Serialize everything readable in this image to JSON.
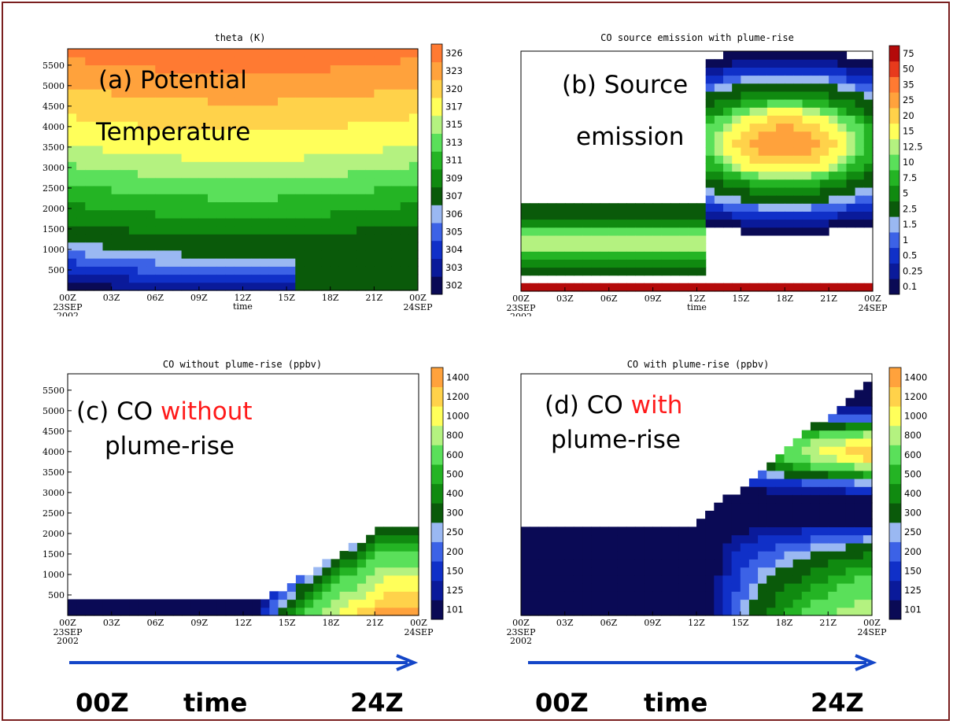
{
  "chart_data": [
    {
      "type": "heatmap",
      "panel": "a",
      "title": "theta (K)",
      "xlabel": "time",
      "x_ticks": [
        "00Z",
        "03Z",
        "06Z",
        "09Z",
        "12Z",
        "15Z",
        "18Z",
        "21Z",
        "00Z"
      ],
      "x_start_sub": [
        "23SEP",
        "2002"
      ],
      "x_end_sub": [
        "24SEP"
      ],
      "y_ticks": [
        500,
        1000,
        1500,
        2000,
        2500,
        3000,
        3500,
        4000,
        4500,
        5000,
        5500
      ],
      "ylim": [
        0,
        5900
      ],
      "colorbar_labels": [
        "302",
        "303",
        "304",
        "305",
        "306",
        "307",
        "309",
        "311",
        "313",
        "315",
        "317",
        "320",
        "323",
        "326"
      ],
      "colors": [
        "#0a0a55",
        "#0a1a9a",
        "#1030c8",
        "#3c62e6",
        "#9ab8f2",
        "#0a5a0a",
        "#108a10",
        "#24b424",
        "#5ae05a",
        "#b4f280",
        "#ffff5a",
        "#ffd24a",
        "#ffa23c",
        "#ff7a32"
      ],
      "annotation": [
        "(a) Potential",
        "Temperature"
      ]
    },
    {
      "type": "heatmap",
      "panel": "b",
      "title": "CO source emission with plume-rise",
      "xlabel": "time",
      "x_ticks": [
        "00Z",
        "03Z",
        "06Z",
        "09Z",
        "12Z",
        "15Z",
        "18Z",
        "21Z",
        "00Z"
      ],
      "x_start_sub": [
        "23SEP",
        "2002"
      ],
      "x_end_sub": [
        "24SEP"
      ],
      "ylim": [
        0,
        5900
      ],
      "colorbar_labels": [
        "0.1",
        "0.25",
        "0.5",
        "1",
        "1.5",
        "2.5",
        "5",
        "7.5",
        "10",
        "12.5",
        "15",
        "20",
        "25",
        "35",
        "50",
        "75"
      ],
      "colors": [
        "#0a0a55",
        "#0a1a9a",
        "#1030c8",
        "#3c62e6",
        "#9ab8f2",
        "#0a5a0a",
        "#108a10",
        "#24b424",
        "#5ae05a",
        "#b4f280",
        "#ffff5a",
        "#ffd24a",
        "#ffa23c",
        "#ff7a32",
        "#e83a1c",
        "#b40a0a"
      ],
      "annotation": [
        "(b) Source",
        "emission"
      ]
    },
    {
      "type": "heatmap",
      "panel": "c",
      "title": "CO without plume-rise (ppbv)",
      "x_ticks": [
        "00Z",
        "03Z",
        "06Z",
        "09Z",
        "12Z",
        "15Z",
        "18Z",
        "21Z",
        "00Z"
      ],
      "x_start_sub": [
        "23SEP",
        "2002"
      ],
      "x_end_sub": [
        "24SEP"
      ],
      "y_ticks": [
        500,
        1000,
        1500,
        2000,
        2500,
        3000,
        3500,
        4000,
        4500,
        5000,
        5500
      ],
      "ylim": [
        0,
        5900
      ],
      "colorbar_labels": [
        "101",
        "125",
        "150",
        "200",
        "250",
        "300",
        "400",
        "500",
        "600",
        "800",
        "1000",
        "1200",
        "1400"
      ],
      "colors": [
        "#0a0a55",
        "#0a1a9a",
        "#1030c8",
        "#3c62e6",
        "#9ab8f2",
        "#0a5a0a",
        "#108a10",
        "#24b424",
        "#5ae05a",
        "#b4f280",
        "#ffff5a",
        "#ffd24a",
        "#ffa23c",
        "#ff7a32"
      ],
      "annotation": [
        "(c) CO ",
        "without",
        "plume-rise"
      ]
    },
    {
      "type": "heatmap",
      "panel": "d",
      "title": "CO with plume-rise (ppbv)",
      "x_ticks": [
        "00Z",
        "03Z",
        "06Z",
        "09Z",
        "12Z",
        "15Z",
        "18Z",
        "21Z",
        "00Z"
      ],
      "x_start_sub": [
        "23SEP",
        "2002"
      ],
      "x_end_sub": [
        "24SEP"
      ],
      "ylim": [
        0,
        5900
      ],
      "colorbar_labels": [
        "101",
        "125",
        "150",
        "200",
        "250",
        "300",
        "400",
        "500",
        "600",
        "800",
        "1000",
        "1200",
        "1400"
      ],
      "colors": [
        "#0a0a55",
        "#0a1a9a",
        "#1030c8",
        "#3c62e6",
        "#9ab8f2",
        "#0a5a0a",
        "#108a10",
        "#24b424",
        "#5ae05a",
        "#b4f280",
        "#ffff5a",
        "#ffd24a",
        "#ffa23c",
        "#ff7a32"
      ],
      "annotation": [
        "(d) CO ",
        "with",
        "plume-rise"
      ]
    }
  ],
  "bottom_labels": {
    "left": [
      "00Z",
      "time",
      "24Z"
    ],
    "right": [
      "00Z",
      "time",
      "24Z"
    ]
  },
  "colors": {
    "frame": "#7a1f1f",
    "arrow": "#1446c8",
    "highlight_text": "#ff1a1a"
  }
}
